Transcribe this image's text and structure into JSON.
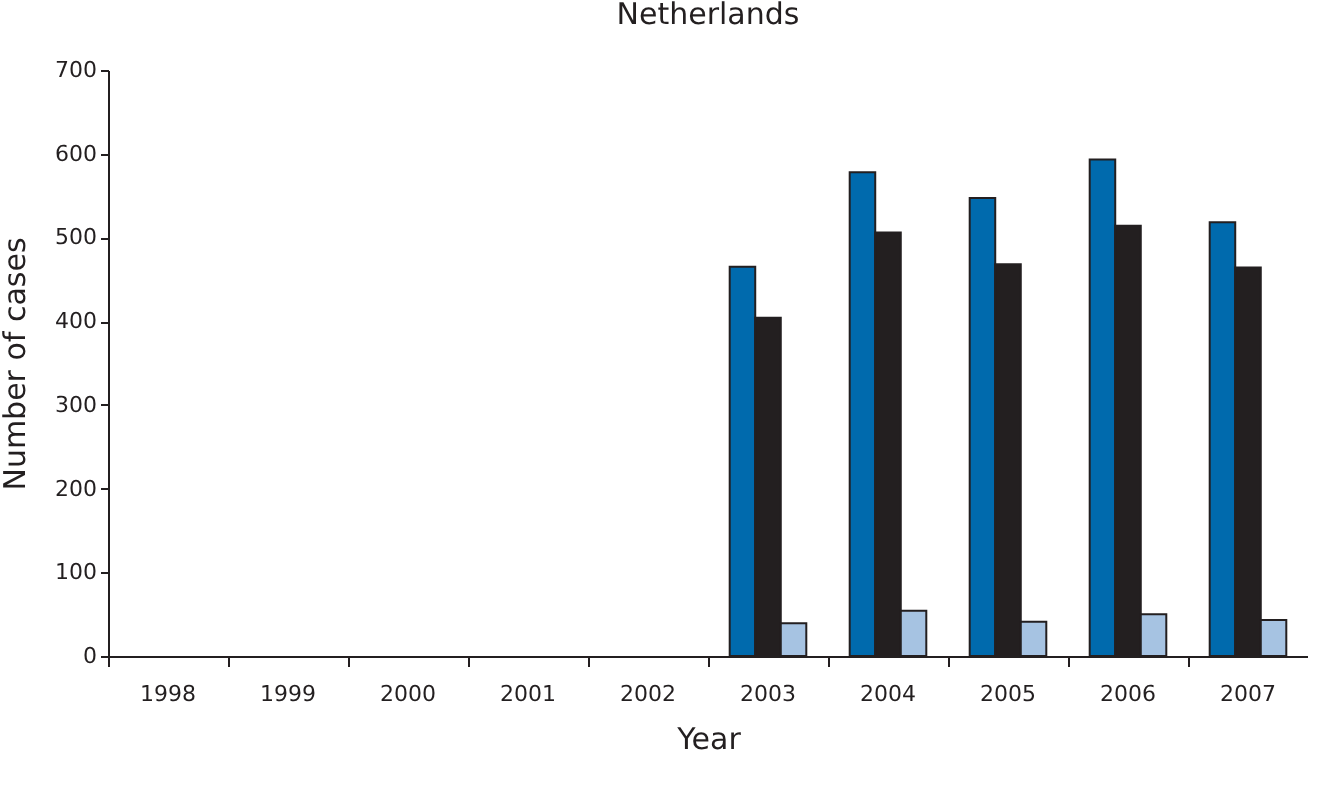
{
  "chart_data": {
    "type": "bar",
    "title": "Netherlands",
    "xlabel": "Year",
    "ylabel": "Number of cases",
    "categories": [
      "1998",
      "1999",
      "2000",
      "2001",
      "2002",
      "2003",
      "2004",
      "2005",
      "2006",
      "2007"
    ],
    "series": [
      {
        "color": "#006aad",
        "values": [
          null,
          null,
          null,
          null,
          null,
          465,
          578,
          547,
          593,
          518
        ]
      },
      {
        "color": "#231f20",
        "values": [
          null,
          null,
          null,
          null,
          null,
          404,
          506,
          468,
          514,
          464
        ]
      },
      {
        "color": "#a6c3e2",
        "values": [
          null,
          null,
          null,
          null,
          null,
          39,
          54,
          41,
          50,
          43
        ]
      }
    ],
    "ylim": [
      0,
      700
    ],
    "yticks": [
      0,
      100,
      200,
      300,
      400,
      500,
      600,
      700
    ],
    "grid": false,
    "legend": false
  }
}
